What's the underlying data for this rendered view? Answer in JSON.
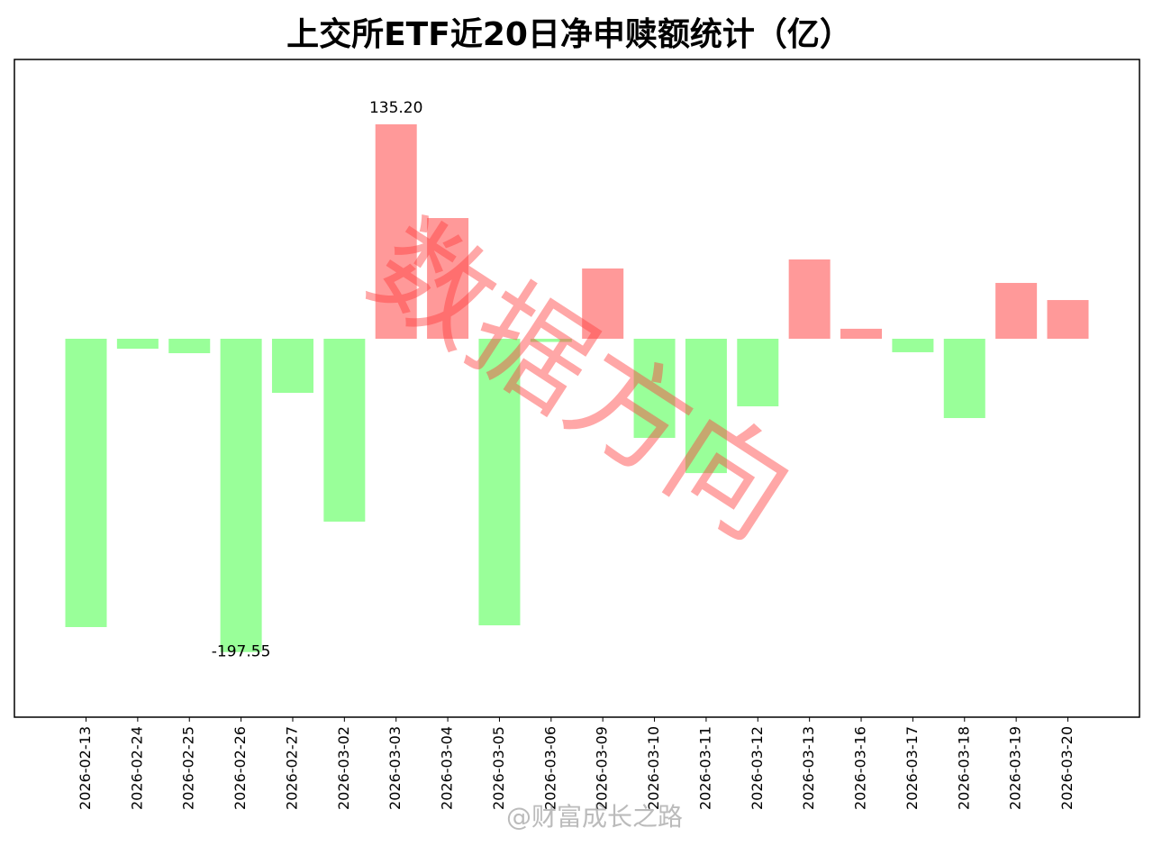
{
  "chart_data": {
    "type": "bar",
    "title": "上交所ETF近20日净申赎额统计（亿）",
    "categories": [
      "2026-02-13",
      "2026-02-24",
      "2026-02-25",
      "2026-02-26",
      "2026-02-27",
      "2026-03-02",
      "2026-03-03",
      "2026-03-04",
      "2026-03-05",
      "2026-03-06",
      "2026-03-09",
      "2026-03-10",
      "2026-03-11",
      "2026-03-12",
      "2026-03-13",
      "2026-03-16",
      "2026-03-17",
      "2026-03-18",
      "2026-03-19",
      "2026-03-20"
    ],
    "values": [
      -181.8,
      -6.3,
      -9.1,
      -197.55,
      -34.1,
      -115.3,
      135.2,
      76.1,
      -180.7,
      -2,
      44.3,
      -62.5,
      -84.7,
      -42.6,
      50.0,
      6.3,
      -8.5,
      -50.0,
      35.2,
      24.4
    ],
    "value_labels": [
      null,
      null,
      null,
      "-197.55",
      null,
      null,
      "135.20",
      null,
      null,
      null,
      null,
      null,
      null,
      null,
      null,
      null,
      null,
      null,
      null,
      null
    ],
    "positive_color": "#ff9999",
    "negative_color": "#99ff99",
    "ylim": [
      -238.6,
      176.1
    ],
    "watermark": "数据方向",
    "credit": "@财富成长之路"
  }
}
